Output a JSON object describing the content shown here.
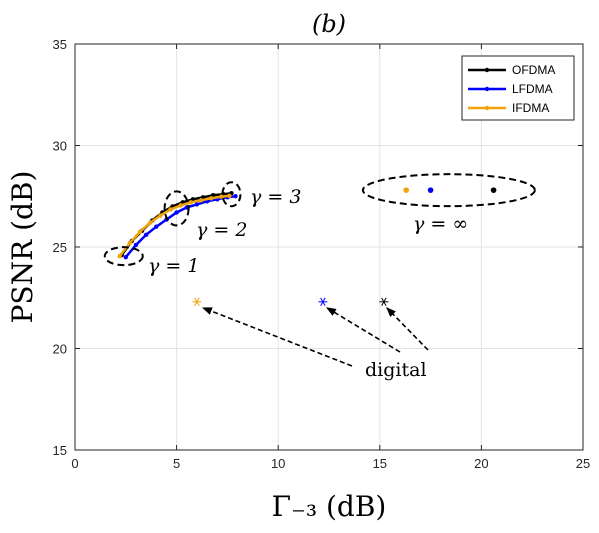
{
  "chart_data": {
    "type": "line",
    "title": "(b)",
    "xlabel": "Γ₋₃ (dB)",
    "ylabel": "PSNR (dB)",
    "xlim": [
      0,
      25
    ],
    "ylim": [
      15,
      35
    ],
    "xticks": [
      0,
      5,
      10,
      15,
      20,
      25
    ],
    "yticks": [
      15,
      20,
      25,
      30,
      35
    ],
    "grid": true,
    "legend_position": "top-right",
    "series": [
      {
        "name": "OFDMA",
        "color": "#000000",
        "x": [
          2.3,
          2.8,
          3.3,
          3.8,
          4.3,
          4.8,
          5.3,
          5.8,
          6.3,
          6.8,
          7.3,
          7.7
        ],
        "y": [
          24.6,
          25.3,
          25.8,
          26.3,
          26.7,
          27.0,
          27.2,
          27.35,
          27.45,
          27.55,
          27.6,
          27.65
        ]
      },
      {
        "name": "LFDMA",
        "color": "#0000ff",
        "x": [
          2.5,
          3.0,
          3.5,
          4.0,
          4.5,
          5.0,
          5.5,
          6.0,
          6.5,
          7.0,
          7.5,
          7.9
        ],
        "y": [
          24.5,
          25.1,
          25.6,
          26.0,
          26.35,
          26.7,
          26.95,
          27.1,
          27.25,
          27.35,
          27.45,
          27.5
        ]
      },
      {
        "name": "IFDMA",
        "color": "#f0a30a",
        "x": [
          2.2,
          2.7,
          3.2,
          3.7,
          4.2,
          4.7,
          5.2,
          5.7,
          6.2,
          6.7,
          7.2,
          7.6
        ],
        "y": [
          24.55,
          25.2,
          25.75,
          26.2,
          26.55,
          26.85,
          27.05,
          27.2,
          27.3,
          27.4,
          27.48,
          27.52
        ]
      }
    ],
    "infinity_points": [
      {
        "name": "IFDMA",
        "x": 16.3,
        "y": 27.8,
        "color": "#f0a30a"
      },
      {
        "name": "LFDMA",
        "x": 17.5,
        "y": 27.8,
        "color": "#0000ff"
      },
      {
        "name": "OFDMA",
        "x": 20.6,
        "y": 27.8,
        "color": "#000000"
      }
    ],
    "digital_points": [
      {
        "name": "IFDMA",
        "x": 6.0,
        "y": 22.3,
        "color": "#f0a30a"
      },
      {
        "name": "LFDMA",
        "x": 12.2,
        "y": 22.3,
        "color": "#0000ff"
      },
      {
        "name": "OFDMA",
        "x": 15.2,
        "y": 22.3,
        "color": "#000000"
      }
    ],
    "annotations": {
      "gamma1": "γ = 1",
      "gamma2": "γ = 2",
      "gamma3": "γ = 3",
      "gamma_inf": "γ = ∞",
      "digital": "digital"
    }
  }
}
